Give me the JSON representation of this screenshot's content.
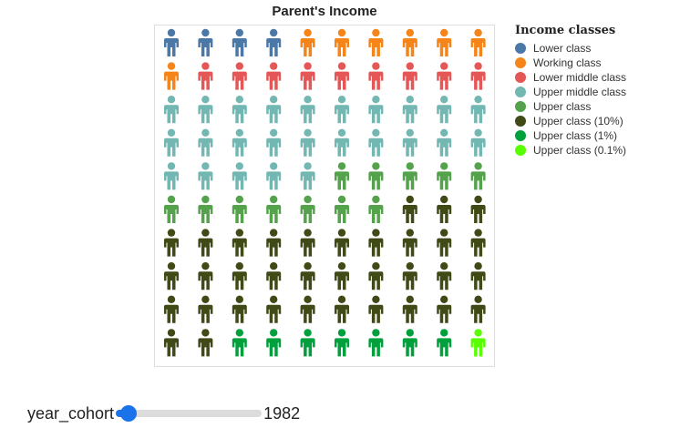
{
  "chart_data": {
    "type": "pictogram",
    "title": "Parent's Income",
    "grid": false,
    "legend_position": "right",
    "legend_title": "Income classes",
    "rows": 10,
    "columns": 10,
    "fill_order": "row-major",
    "series": [
      {
        "name": "Lower class",
        "color": "#4c78a8",
        "count": 4
      },
      {
        "name": "Working class",
        "color": "#f58518",
        "count": 7
      },
      {
        "name": "Lower middle class",
        "color": "#e45756",
        "count": 9
      },
      {
        "name": "Upper middle class",
        "color": "#72b7b2",
        "count": 25
      },
      {
        "name": "Upper class",
        "color": "#54a24b",
        "count": 12
      },
      {
        "name": "Upper class (10%)",
        "color": "#3f4a16",
        "count": 35
      },
      {
        "name": "Upper class (1%)",
        "color": "#00a03c",
        "count": 7
      },
      {
        "name": "Upper class (0.1%)",
        "color": "#57ff00",
        "count": 1
      }
    ]
  },
  "slider": {
    "label": "year_cohort",
    "value": "1982",
    "fraction": 0.09,
    "accent_color": "#1a73e8"
  }
}
